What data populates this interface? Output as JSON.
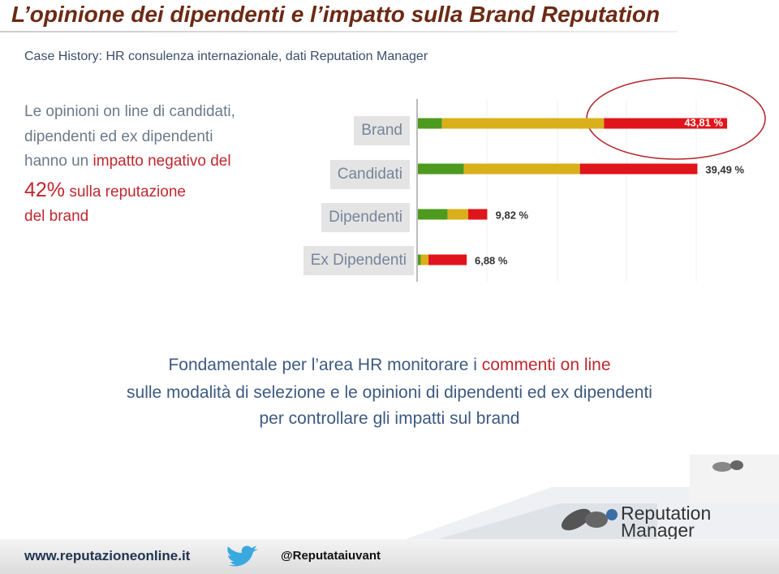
{
  "header": {
    "title": "L’opinione dei dipendenti e l’impatto sulla Brand Reputation",
    "subtitle": "Case History: HR consulenza internazionale, dati Reputation Manager"
  },
  "intro": {
    "lines": [
      "Le opinioni on line di candidati,",
      "dipendenti ed ex dipendenti",
      "hanno un"
    ],
    "highlight_lines": [
      "impatto negativo del",
      "42%",
      "sulla reputazione",
      "del brand"
    ]
  },
  "chart_data": {
    "type": "bar",
    "orientation": "horizontal",
    "stacked": true,
    "categories": [
      "Brand",
      "Candidati",
      "Dipendenti",
      "Ex Dipendenti"
    ],
    "series": [
      {
        "color": "#4d9a1f",
        "values": [
          3.4,
          6.5,
          4.2,
          0.4
        ]
      },
      {
        "color": "#d9b01a",
        "values": [
          22.9,
          16.4,
          2.9,
          1.1
        ]
      },
      {
        "color": "#e0141b",
        "values": [
          17.4,
          16.6,
          2.7,
          5.4
        ]
      }
    ],
    "totals": [
      43.81,
      39.49,
      9.82,
      6.88
    ],
    "total_labels": [
      "43,81 %",
      "39,49 %",
      "9,82 %",
      "6,88 %"
    ],
    "xlim": [
      0,
      50
    ]
  },
  "conclusion": {
    "line1": "Fondamentale per l’area HR monitorare i",
    "line1_highlight": "commenti on line",
    "line2": "sulle modalità di selezione e le opinioni di dipendenti ed ex dipendenti",
    "line3": "per controllare gli impatti sul brand"
  },
  "footer": {
    "website": "www.reputazioneonline.it",
    "twitter": "@Reputataiuvant",
    "logo": [
      "Reputation",
      "Manager"
    ]
  }
}
